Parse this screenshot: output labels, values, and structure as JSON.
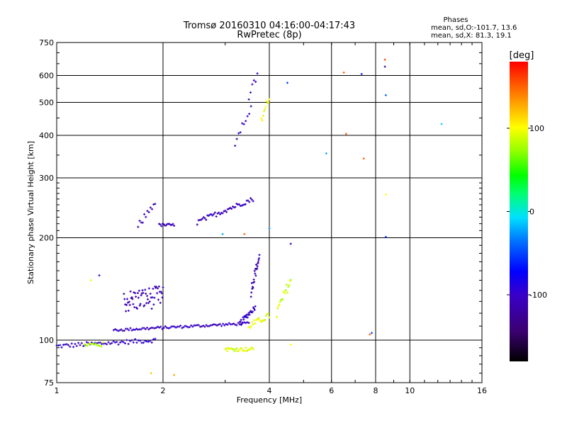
{
  "chart_data": {
    "type": "scatter",
    "title": "Tromsø 20160310 04:16:00-04:17:43",
    "subtitle": "RwPretec (8p)",
    "xlabel": "Frequency [MHz]",
    "ylabel": "Stationary phase Virtual Height [km]",
    "x_scale": "log2",
    "y_scale": "log",
    "xlim": [
      1,
      16
    ],
    "ylim": [
      75,
      750
    ],
    "x_ticks": [
      1,
      2,
      4,
      6,
      8,
      10,
      16
    ],
    "y_ticks": [
      75,
      100,
      200,
      300,
      400,
      500,
      600,
      750
    ],
    "stats": {
      "heading": "Phases",
      "line1": "mean, sd,O:-101.7, 13.6",
      "line2": "mean, sd,X:  81.3, 19.1"
    },
    "colorbar": {
      "label": "[deg]",
      "range": [
        -180,
        180
      ],
      "ticks": [
        100,
        0,
        -100
      ]
    },
    "traces": [
      {
        "f0": 1.0,
        "f1": 1.9,
        "h0": 96,
        "h1": 100,
        "n": 60,
        "jitter": 1.5,
        "phase": -100
      },
      {
        "f0": 1.2,
        "f1": 1.35,
        "h0": 97,
        "h1": 97,
        "n": 14,
        "jitter": 1.5,
        "phase": 80
      },
      {
        "f0": 1.45,
        "f1": 3.5,
        "h0": 107,
        "h1": 112,
        "n": 90,
        "jitter": 1.0,
        "phase": -105
      },
      {
        "f0": 3.3,
        "f1": 3.65,
        "h0": 112,
        "h1": 125,
        "n": 25,
        "jitter": 2.0,
        "phase": -100
      },
      {
        "f0": 3.55,
        "f1": 3.75,
        "h0": 140,
        "h1": 175,
        "n": 22,
        "jitter": 6.0,
        "phase": -110
      },
      {
        "f0": 3.5,
        "f1": 4.0,
        "h0": 110,
        "h1": 118,
        "n": 20,
        "jitter": 2.5,
        "phase": 95
      },
      {
        "f0": 4.2,
        "f1": 4.6,
        "h0": 120,
        "h1": 150,
        "n": 18,
        "jitter": 5.0,
        "phase": 90
      },
      {
        "f0": 1.55,
        "f1": 2.0,
        "h0": 130,
        "h1": 135,
        "n": 60,
        "jitter": 10.0,
        "phase": -110
      },
      {
        "f0": 1.7,
        "f1": 1.9,
        "h0": 215,
        "h1": 255,
        "n": 12,
        "jitter": 6.0,
        "phase": -110
      },
      {
        "f0": 1.95,
        "f1": 2.15,
        "h0": 218,
        "h1": 218,
        "n": 14,
        "jitter": 2.0,
        "phase": -110
      },
      {
        "f0": 2.5,
        "f1": 3.6,
        "h0": 222,
        "h1": 260,
        "n": 45,
        "jitter": 4.0,
        "phase": -105
      },
      {
        "f0": 3.0,
        "f1": 3.6,
        "h0": 94,
        "h1": 94,
        "n": 28,
        "jitter": 1.2,
        "phase": 95
      },
      {
        "f0": 3.2,
        "f1": 3.55,
        "h0": 380,
        "h1": 480,
        "n": 10,
        "jitter": 10.0,
        "phase": -105
      },
      {
        "f0": 3.5,
        "f1": 3.7,
        "h0": 520,
        "h1": 600,
        "n": 6,
        "jitter": 15.0,
        "phase": -105
      },
      {
        "f0": 3.8,
        "f1": 4.0,
        "h0": 440,
        "h1": 520,
        "n": 10,
        "jitter": 12.0,
        "phase": 100
      }
    ],
    "points": [
      {
        "f": 1.25,
        "h": 150,
        "phase": 95
      },
      {
        "f": 1.32,
        "h": 155,
        "phase": -105
      },
      {
        "f": 1.85,
        "h": 80,
        "phase": 120
      },
      {
        "f": 2.15,
        "h": 79,
        "phase": 130
      },
      {
        "f": 2.95,
        "h": 205,
        "phase": -20
      },
      {
        "f": 3.4,
        "h": 205,
        "phase": 150
      },
      {
        "f": 4.0,
        "h": 213,
        "phase": -30
      },
      {
        "f": 4.6,
        "h": 192,
        "phase": -110
      },
      {
        "f": 4.5,
        "h": 571,
        "phase": -50
      },
      {
        "f": 4.6,
        "h": 97,
        "phase": 100
      },
      {
        "f": 5.8,
        "h": 354,
        "phase": -20
      },
      {
        "f": 6.5,
        "h": 612,
        "phase": 150
      },
      {
        "f": 6.6,
        "h": 404,
        "phase": 150
      },
      {
        "f": 7.3,
        "h": 606,
        "phase": -60
      },
      {
        "f": 7.4,
        "h": 342,
        "phase": 150
      },
      {
        "f": 7.7,
        "h": 104,
        "phase": 150
      },
      {
        "f": 7.8,
        "h": 105,
        "phase": -50
      },
      {
        "f": 8.5,
        "h": 668,
        "phase": 160
      },
      {
        "f": 8.5,
        "h": 637,
        "phase": -120
      },
      {
        "f": 8.55,
        "h": 525,
        "phase": -40
      },
      {
        "f": 8.55,
        "h": 268,
        "phase": 100
      },
      {
        "f": 8.55,
        "h": 201,
        "phase": -60
      },
      {
        "f": 12.3,
        "h": 432,
        "phase": -10
      }
    ],
    "grid": true
  }
}
